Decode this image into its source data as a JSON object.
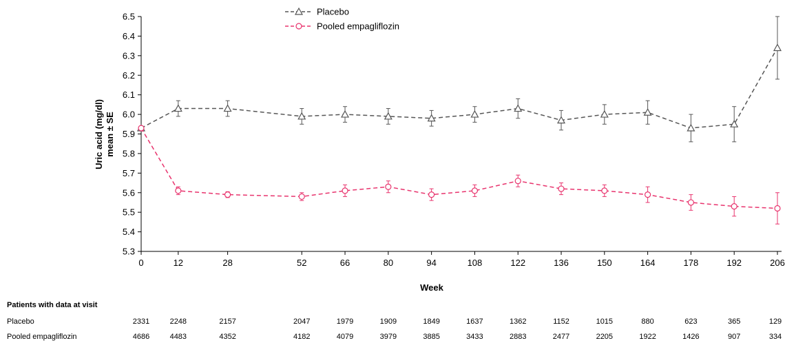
{
  "chart_data": {
    "type": "line",
    "xlabel": "Week",
    "ylabel_line1": "Uric acid (mg/dl)",
    "ylabel_line2": "mean ± SE",
    "x": [
      0,
      12,
      28,
      52,
      66,
      80,
      94,
      108,
      122,
      136,
      150,
      164,
      178,
      192,
      206
    ],
    "ylim": [
      5.3,
      6.5
    ],
    "yticks": [
      "5.3",
      "5.4",
      "5.5",
      "5.6",
      "5.7",
      "5.8",
      "5.9",
      "6.0",
      "6.1",
      "6.2",
      "6.3",
      "6.4",
      "6.5"
    ],
    "grid": false,
    "legend_position": "top-center",
    "series": [
      {
        "name": "Placebo",
        "color": "#555555",
        "marker": "triangle",
        "values": [
          5.93,
          6.03,
          6.03,
          5.99,
          6.0,
          5.99,
          5.98,
          6.0,
          6.03,
          5.97,
          6.0,
          6.01,
          5.93,
          5.95,
          6.34
        ],
        "se": [
          0.01,
          0.04,
          0.04,
          0.04,
          0.04,
          0.04,
          0.04,
          0.04,
          0.05,
          0.05,
          0.05,
          0.06,
          0.07,
          0.09,
          0.16
        ]
      },
      {
        "name": "Pooled empagliflozin",
        "color": "#e8336d",
        "marker": "circle",
        "values": [
          5.93,
          5.61,
          5.59,
          5.58,
          5.61,
          5.63,
          5.59,
          5.61,
          5.66,
          5.62,
          5.61,
          5.59,
          5.55,
          5.53,
          5.52
        ],
        "se": [
          0.01,
          0.02,
          0.015,
          0.02,
          0.03,
          0.03,
          0.03,
          0.03,
          0.03,
          0.03,
          0.03,
          0.04,
          0.04,
          0.05,
          0.08
        ]
      }
    ]
  },
  "table": {
    "header": "Patients with data at visit",
    "rows": [
      {
        "label": "Placebo",
        "values": [
          "2331",
          "2248",
          "2157",
          "2047",
          "1979",
          "1909",
          "1849",
          "1637",
          "1362",
          "1152",
          "1015",
          "880",
          "623",
          "365",
          "129"
        ]
      },
      {
        "label": "Pooled empagliflozin",
        "values": [
          "4686",
          "4483",
          "4352",
          "4182",
          "4079",
          "3979",
          "3885",
          "3433",
          "2883",
          "2477",
          "2205",
          "1922",
          "1426",
          "907",
          "334"
        ]
      }
    ]
  }
}
